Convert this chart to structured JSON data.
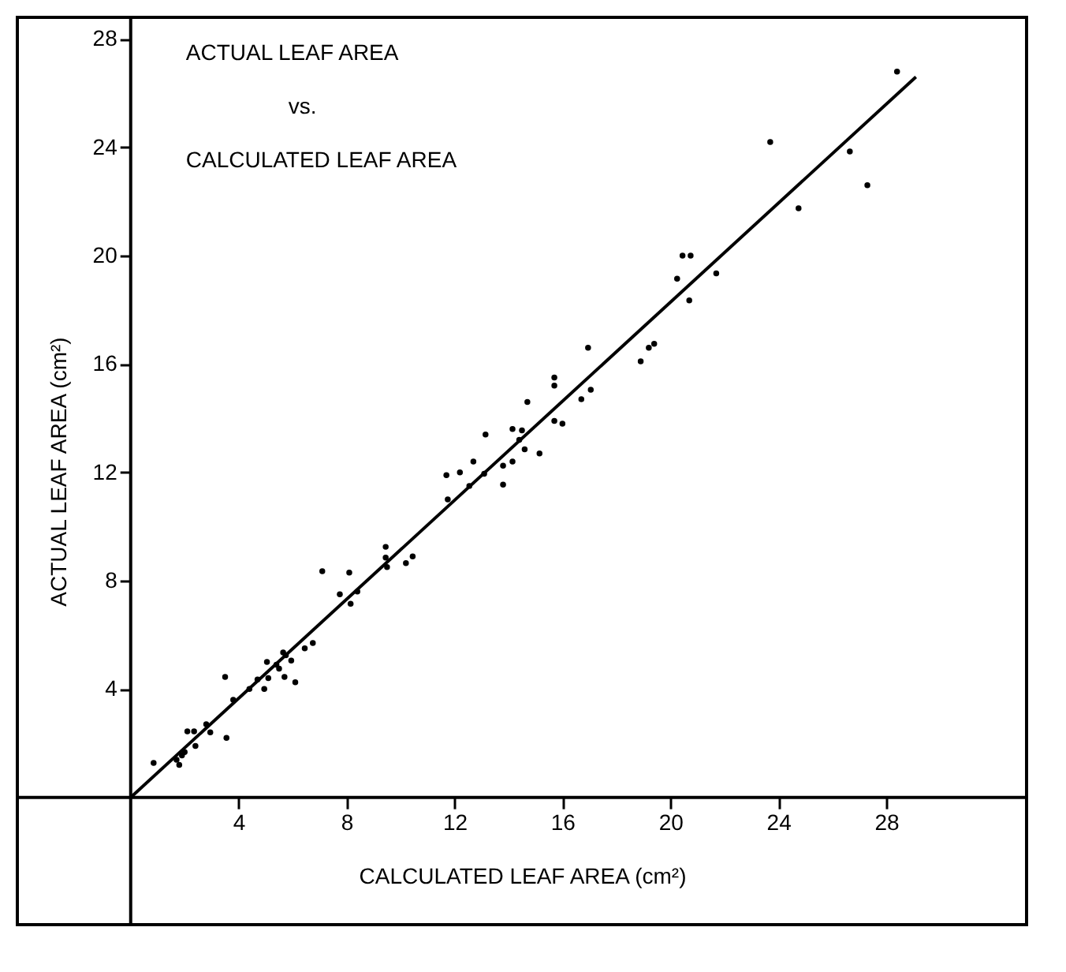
{
  "chart_data": {
    "type": "scatter",
    "xlabel": "CALCULATED LEAF AREA (cm²)",
    "ylabel": "ACTUAL LEAF AREA (cm²)",
    "annotations": [
      "ACTUAL LEAF AREA",
      "vs.",
      "CALCULATED LEAF AREA"
    ],
    "xlim": [
      -4.2,
      33.2
    ],
    "ylim": [
      -4.7,
      28.8
    ],
    "xticks": [
      4,
      8,
      12,
      16,
      20,
      24,
      28
    ],
    "yticks": [
      4,
      8,
      12,
      16,
      20,
      24,
      28
    ],
    "grid": false,
    "series": [
      {
        "marker": "circle",
        "color": "#000000",
        "x": [
          0.85,
          1.7,
          1.8,
          1.9,
          2.0,
          2.1,
          2.35,
          2.4,
          2.8,
          2.95,
          3.5,
          3.55,
          3.8,
          4.4,
          4.7,
          4.95,
          5.05,
          5.1,
          5.4,
          5.5,
          5.65,
          5.7,
          5.75,
          5.95,
          6.1,
          6.45,
          6.75,
          7.1,
          7.75,
          8.1,
          8.15,
          8.4,
          9.45,
          9.45,
          9.5,
          10.2,
          10.45,
          11.7,
          11.75,
          12.2,
          12.55,
          12.7,
          13.1,
          13.15,
          13.8,
          13.8,
          14.15,
          14.15,
          14.4,
          14.5,
          14.6,
          14.7,
          15.15,
          15.7,
          15.7,
          15.7,
          16.0,
          16.7,
          16.95,
          17.05,
          18.9,
          19.2,
          19.4,
          20.25,
          20.45,
          20.75,
          20.7,
          21.7,
          23.7,
          24.75,
          26.65,
          27.3,
          28.4
        ],
        "values": [
          1.27,
          1.39,
          1.2,
          1.55,
          1.67,
          2.44,
          2.44,
          1.9,
          2.7,
          2.4,
          4.45,
          2.2,
          3.6,
          4.0,
          4.35,
          4.0,
          5.0,
          4.4,
          4.9,
          4.75,
          5.35,
          4.45,
          5.25,
          5.05,
          4.25,
          5.5,
          5.7,
          8.35,
          7.5,
          8.3,
          7.15,
          7.6,
          9.25,
          8.85,
          8.5,
          8.65,
          8.9,
          11.9,
          11.0,
          12.0,
          11.5,
          12.4,
          11.95,
          13.4,
          11.55,
          12.25,
          13.6,
          12.4,
          13.2,
          13.55,
          12.85,
          14.6,
          12.7,
          15.5,
          15.2,
          13.9,
          13.8,
          14.7,
          16.6,
          15.05,
          16.1,
          16.6,
          16.75,
          19.15,
          20.0,
          20.0,
          18.35,
          19.35,
          24.2,
          21.75,
          23.85,
          22.6,
          26.8
        ]
      },
      {
        "type": "line",
        "marker": "none",
        "color": "#000000",
        "line_style": "solid",
        "x": [
          0,
          29.1
        ],
        "values": [
          0,
          26.6
        ]
      }
    ]
  }
}
